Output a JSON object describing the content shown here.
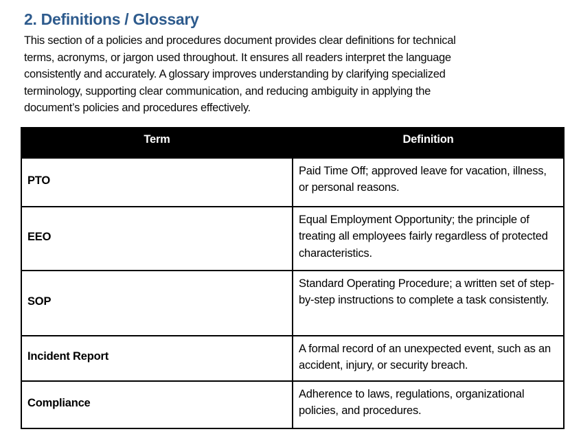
{
  "heading": "2. Definitions / Glossary",
  "intro_lines": [
    "This section of a policies and procedures document provides clear definitions for technical",
    "terms, acronyms, or jargon used throughout. It ensures all readers interpret the language",
    "consistently and accurately. A glossary improves understanding by clarifying specialized",
    "terminology, supporting clear communication, and reducing ambiguity in applying the",
    "document’s policies and procedures effectively."
  ],
  "colors": {
    "heading_text": "#2E5B8D",
    "table_header_bg": "#000000",
    "table_header_text": "#FFFFFF",
    "table_border": "#000000",
    "page_bg": "#FFFFFF"
  },
  "table": {
    "columns": [
      "Term",
      "Definition"
    ],
    "rows": [
      {
        "term": "PTO",
        "definition": "Paid Time Off; approved leave for vacation, illness, or personal reasons."
      },
      {
        "term": "EEO",
        "definition": "Equal Employment Opportunity; the principle of treating all employees fairly regardless of protected characteristics."
      },
      {
        "term": "SOP",
        "definition": "Standard Operating Procedure; a written set of step-by-step instructions to complete a task consistently."
      },
      {
        "term": "Incident Report",
        "definition": "A formal record of an unexpected event, such as an accident, injury, or security breach."
      },
      {
        "term": "Compliance",
        "definition": "Adherence to laws, regulations, organizational policies, and procedures."
      }
    ]
  }
}
